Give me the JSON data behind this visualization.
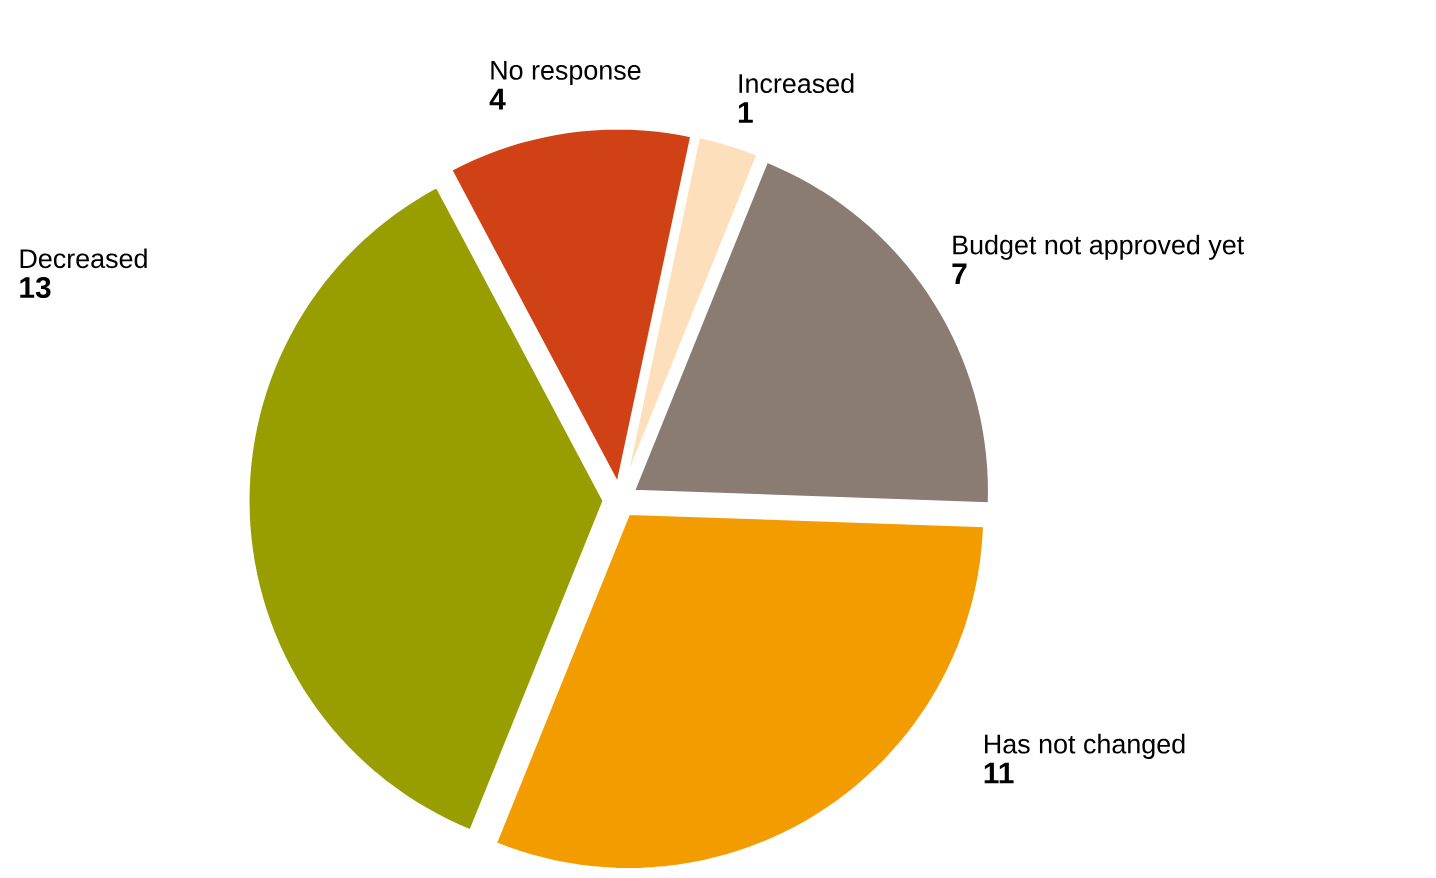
{
  "chart_data": {
    "type": "pie",
    "categories": [
      "Increased",
      "Budget not approved yet",
      "Has not changed",
      "Decreased",
      "No response"
    ],
    "values": [
      1,
      7,
      11,
      13,
      4
    ],
    "colors": [
      "#fde0bb",
      "#8a7b73",
      "#f39c00",
      "#999e00",
      "#d04116"
    ],
    "data_labels": true
  }
}
